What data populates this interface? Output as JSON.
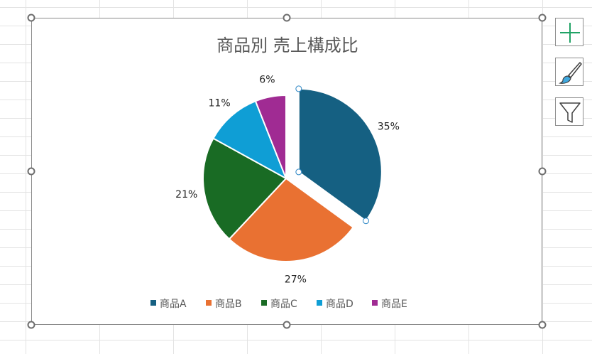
{
  "colors": {
    "accent_green": "#21a366",
    "handle_border": "#6e6e6e",
    "sheet_grid": "#e3e3e3"
  },
  "toolbar": {
    "add_element_icon": "plus-icon",
    "style_icon": "brush-icon",
    "filter_icon": "funnel-icon"
  },
  "chart_data": {
    "type": "pie",
    "title": "商品別 売上構成比",
    "categories": [
      "商品A",
      "商品B",
      "商品C",
      "商品D",
      "商品E"
    ],
    "values": [
      35,
      27,
      21,
      11,
      6
    ],
    "labels": [
      "35%",
      "27%",
      "21%",
      "11%",
      "6%"
    ],
    "colors": [
      "#156082",
      "#e97132",
      "#196b24",
      "#0f9ed5",
      "#a02b93"
    ],
    "exploded_series": "商品A",
    "legend_position": "bottom",
    "selected": true
  }
}
